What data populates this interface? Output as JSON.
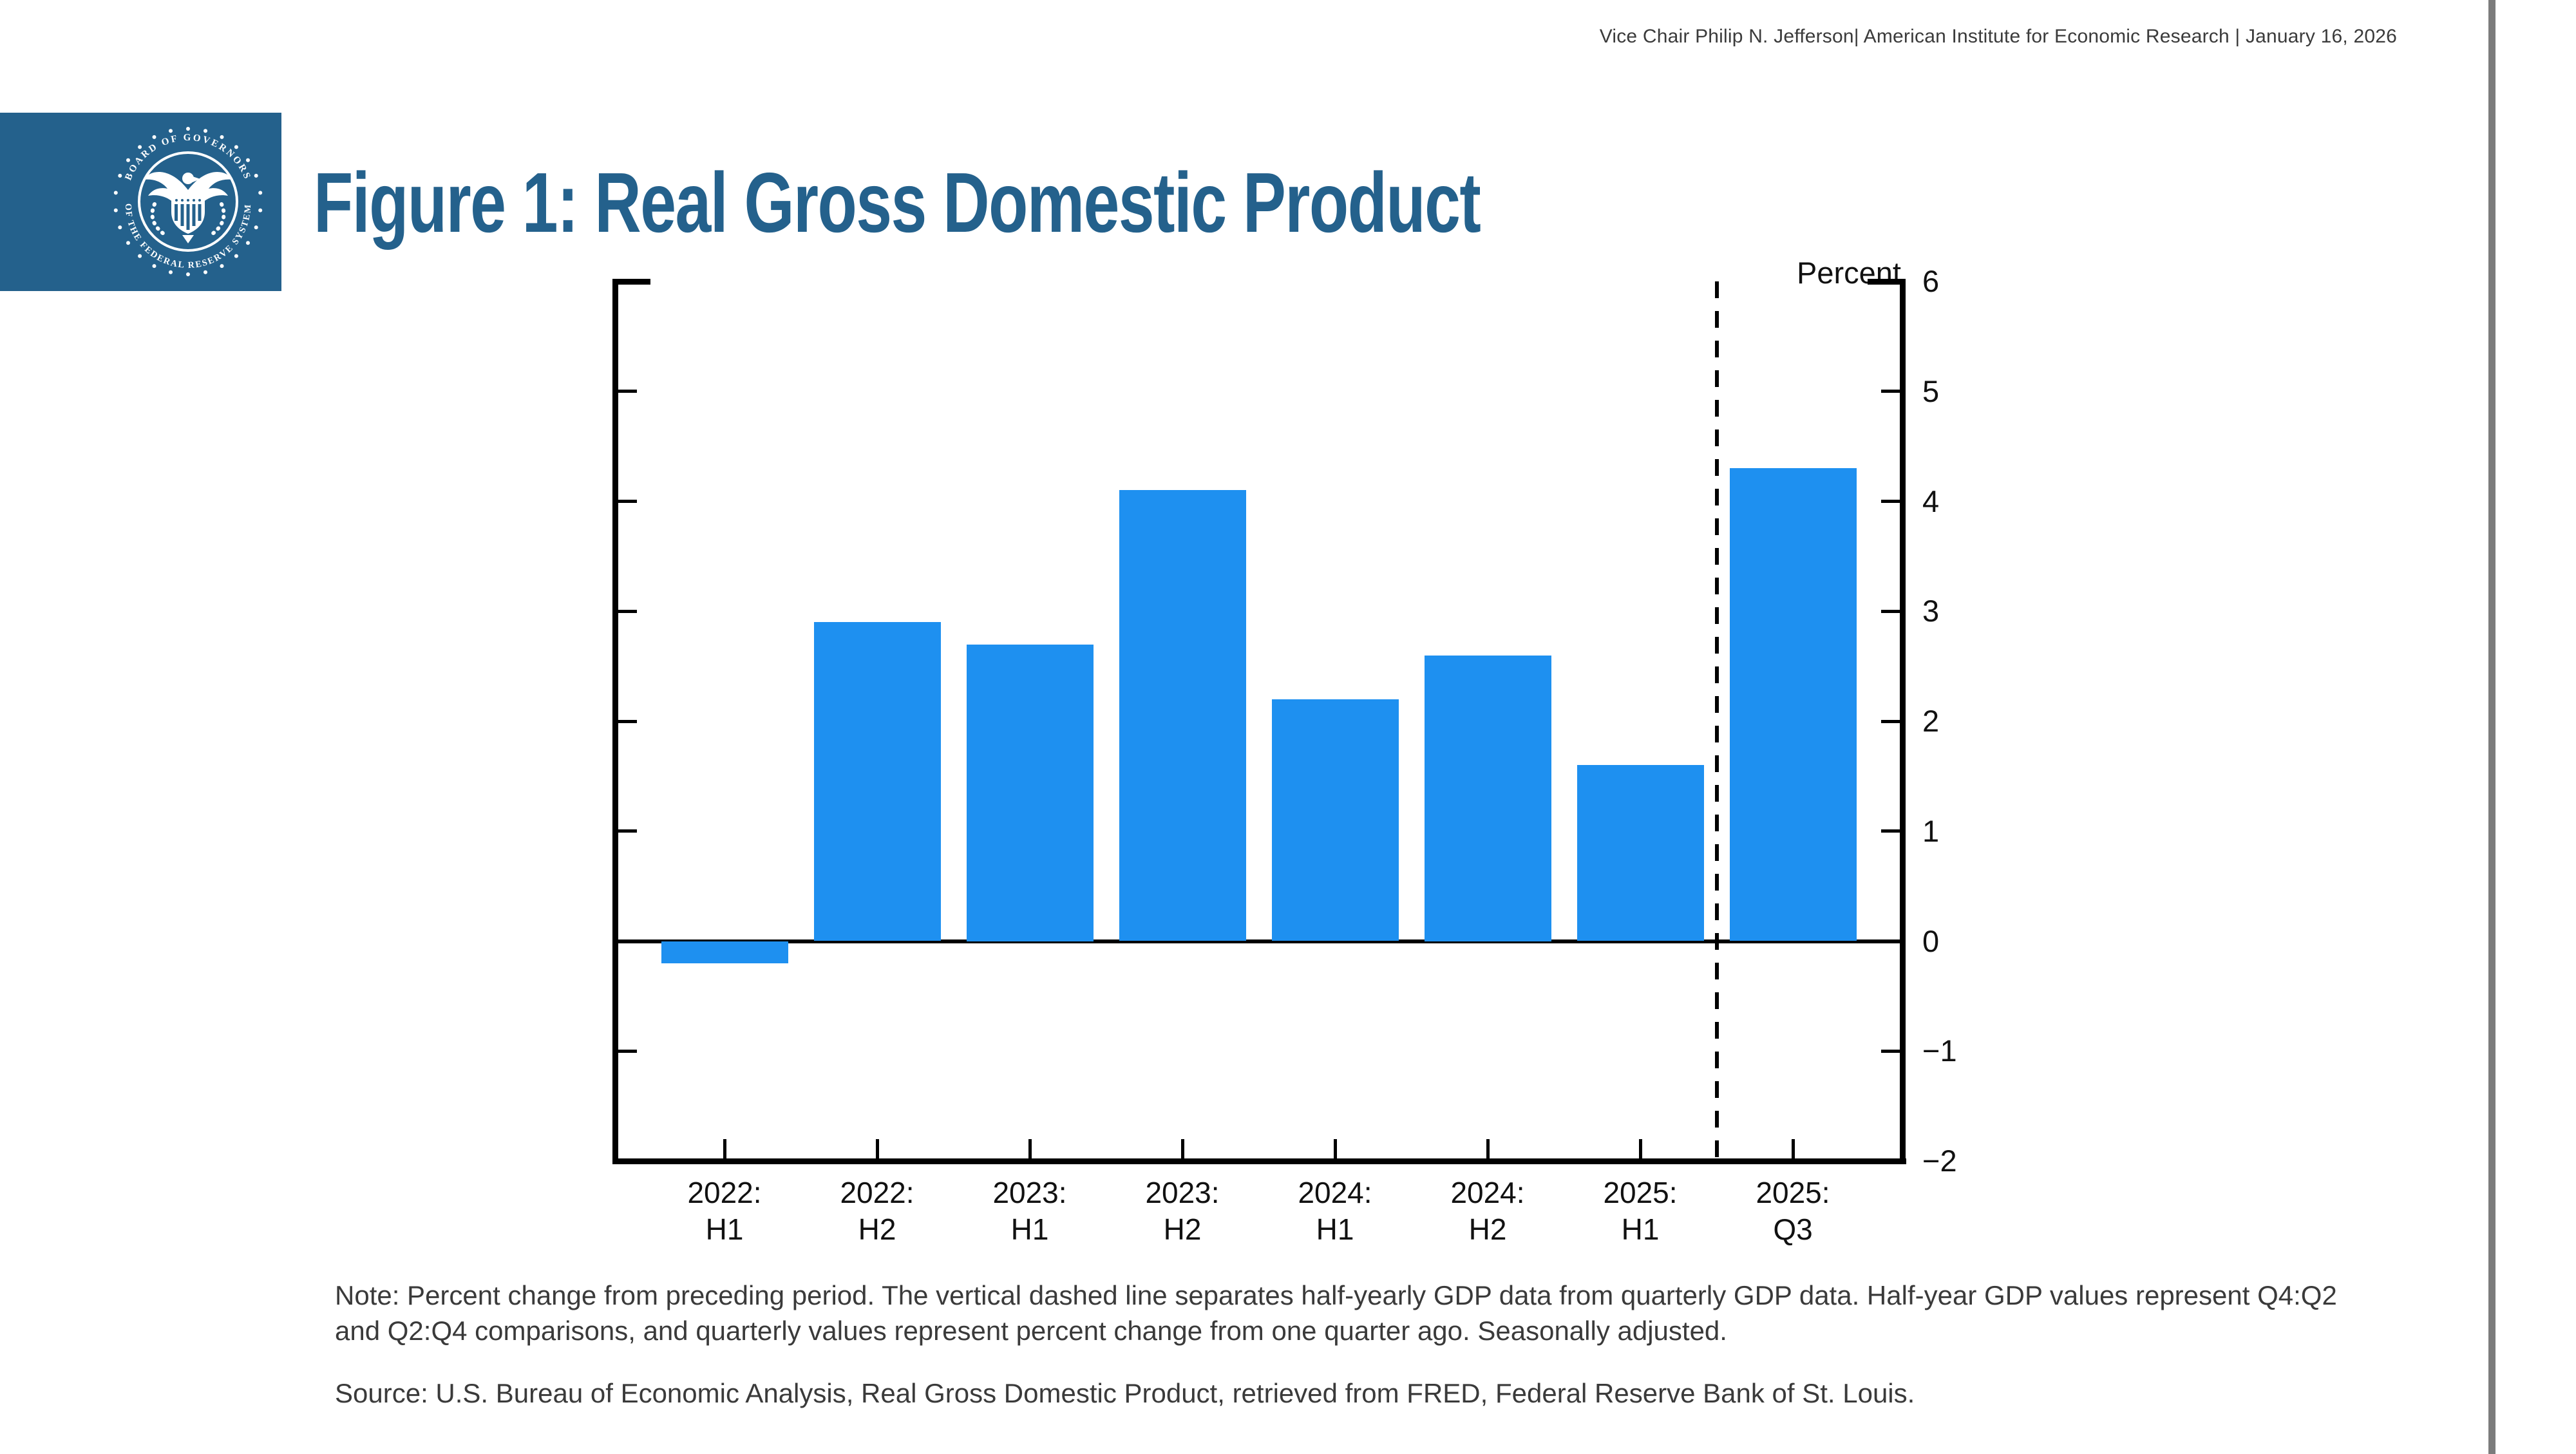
{
  "header": {
    "attribution": "Vice Chair Philip N. Jefferson| American Institute for Economic Research | January 16, 2026"
  },
  "logo": {
    "background": "#24618C",
    "seal_text_top": "BOARD OF GOVERNORS",
    "seal_text_bottom": "OF THE FEDERAL RESERVE SYSTEM"
  },
  "figure_title": "Figure 1: Real Gross Domestic Product",
  "chart_data": {
    "type": "bar",
    "title": "Figure 1: Real Gross Domestic Product",
    "ylabel": "Percent",
    "xlabel": "",
    "categories": [
      "2022: H1",
      "2022: H2",
      "2023: H1",
      "2023: H2",
      "2024: H1",
      "2024: H2",
      "2025: H1",
      "2025: Q3"
    ],
    "category_lines": [
      [
        "2022:",
        "H1"
      ],
      [
        "2022:",
        "H2"
      ],
      [
        "2023:",
        "H1"
      ],
      [
        "2023:",
        "H2"
      ],
      [
        "2024:",
        "H1"
      ],
      [
        "2024:",
        "H2"
      ],
      [
        "2025:",
        "H1"
      ],
      [
        "2025:",
        "Q3"
      ]
    ],
    "values": [
      -0.2,
      2.9,
      2.7,
      4.1,
      2.2,
      2.6,
      1.6,
      4.3
    ],
    "ylim": [
      -2,
      6
    ],
    "yticks": [
      6,
      5,
      4,
      3,
      2,
      1,
      0,
      -1,
      -2
    ],
    "ytick_labels": [
      "6",
      "5",
      "4",
      "3",
      "2",
      "1",
      "0",
      "−1",
      "−2"
    ],
    "bar_color": "#1E90F0",
    "grid": false,
    "legend": null,
    "separator_after_index": 6,
    "separator_style": "vertical dashed line"
  },
  "note": "Note: Percent change from preceding period. The vertical dashed line separates half-yearly GDP data from quarterly GDP data. Half-year GDP values represent Q4:Q2 and Q2:Q4 comparisons, and quarterly values represent percent change from one quarter ago. Seasonally adjusted.",
  "source": "Source: U.S. Bureau of Economic Analysis, Real Gross Domestic Product, retrieved from FRED, Federal Reserve Bank of St. Louis.",
  "colors": {
    "accent_blue": "#24618C",
    "bar_blue": "#1E90F0",
    "edge_gray": "#7C7C7C",
    "text_dark": "#3A3A3A"
  }
}
